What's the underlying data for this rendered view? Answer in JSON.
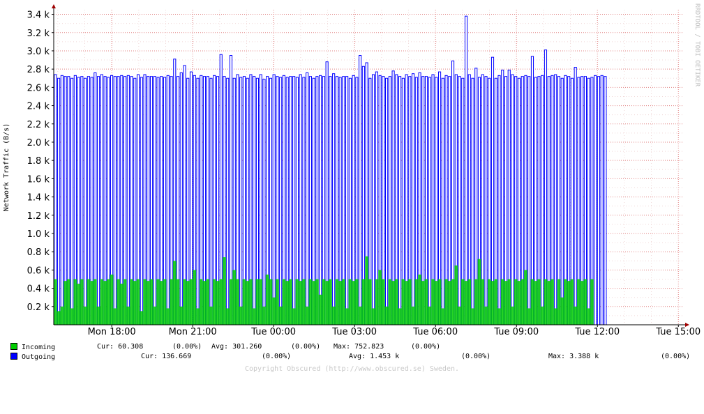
{
  "chart_data": {
    "type": "area",
    "ylabel": "Network Traffic (B/s)",
    "y_ticks": [
      "0.2 k",
      "0.4 k",
      "0.6 k",
      "0.8 k",
      "1.0 k",
      "1.2 k",
      "1.4 k",
      "1.6 k",
      "1.8 k",
      "2.0 k",
      "2.2 k",
      "2.4 k",
      "2.6 k",
      "2.8 k",
      "3.0 k",
      "3.2 k",
      "3.4 k"
    ],
    "x_ticks": [
      "Mon 18:00",
      "Mon 21:00",
      "Tue 00:00",
      "Tue 03:00",
      "Tue 06:00",
      "Tue 09:00",
      "Tue 12:00",
      "Tue 15:00"
    ],
    "ylim": [
      0,
      3450
    ],
    "x_range_hours": [
      15.85,
      39.2
    ],
    "data_end_hour": 36.35,
    "grid": true,
    "legend_placement": "bottom-left",
    "series": [
      {
        "name": "Incoming",
        "color": "#00cc00",
        "values": [
          500,
          150,
          200,
          480,
          500,
          180,
          500,
          450,
          500,
          200,
          500,
          480,
          500,
          200,
          500,
          480,
          500,
          550,
          180,
          500,
          450,
          500,
          200,
          500,
          480,
          500,
          150,
          500,
          480,
          500,
          200,
          500,
          480,
          500,
          180,
          500,
          700,
          500,
          200,
          500,
          480,
          500,
          600,
          180,
          500,
          480,
          500,
          200,
          500,
          480,
          500,
          740,
          180,
          500,
          600,
          500,
          200,
          500,
          480,
          500,
          180,
          500,
          500,
          200,
          550,
          500,
          300,
          500,
          200,
          500,
          480,
          500,
          180,
          500,
          480,
          500,
          200,
          500,
          480,
          500,
          330,
          500,
          480,
          500,
          200,
          500,
          480,
          500,
          180,
          500,
          480,
          500,
          200,
          500,
          750,
          500,
          180,
          500,
          600,
          500,
          200,
          500,
          480,
          500,
          180,
          500,
          480,
          500,
          200,
          500,
          550,
          480,
          500,
          200,
          500,
          480,
          500,
          180,
          500,
          480,
          500,
          650,
          200,
          500,
          480,
          500,
          180,
          500,
          720,
          500,
          200,
          500,
          480,
          500,
          180,
          500,
          480,
          500,
          200,
          500,
          480,
          500,
          600,
          180,
          500,
          480,
          500,
          200,
          500,
          480,
          500,
          180,
          500,
          300,
          500,
          480,
          500,
          200,
          500,
          480,
          500,
          180,
          500
        ]
      },
      {
        "name": "Outgoing",
        "color": "#0000ff",
        "values": [
          2740,
          2700,
          2730,
          2720,
          2720,
          2700,
          2730,
          2710,
          2720,
          2700,
          2720,
          2710,
          2760,
          2720,
          2740,
          2720,
          2710,
          2730,
          2720,
          2720,
          2730,
          2720,
          2730,
          2720,
          2700,
          2740,
          2710,
          2740,
          2720,
          2720,
          2720,
          2710,
          2720,
          2710,
          2730,
          2720,
          2910,
          2720,
          2760,
          2840,
          2700,
          2770,
          2730,
          2700,
          2730,
          2720,
          2720,
          2700,
          2730,
          2720,
          2960,
          2720,
          2700,
          2950,
          2700,
          2740,
          2710,
          2720,
          2700,
          2740,
          2720,
          2700,
          2740,
          2690,
          2720,
          2700,
          2740,
          2720,
          2710,
          2730,
          2710,
          2720,
          2720,
          2710,
          2740,
          2710,
          2760,
          2720,
          2700,
          2720,
          2730,
          2720,
          2880,
          2720,
          2750,
          2720,
          2710,
          2720,
          2720,
          2700,
          2730,
          2710,
          2950,
          2830,
          2870,
          2700,
          2740,
          2770,
          2730,
          2720,
          2700,
          2720,
          2780,
          2740,
          2720,
          2700,
          2740,
          2720,
          2750,
          2710,
          2760,
          2720,
          2720,
          2710,
          2740,
          2710,
          2770,
          2700,
          2730,
          2720,
          2890,
          2740,
          2720,
          2700,
          3380,
          2740,
          2700,
          2810,
          2710,
          2740,
          2720,
          2700,
          2930,
          2700,
          2730,
          2790,
          2720,
          2790,
          2740,
          2720,
          2700,
          2720,
          2730,
          2720,
          2940,
          2710,
          2720,
          2730,
          3010,
          2720,
          2730,
          2740,
          2720,
          2700,
          2730,
          2720,
          2700,
          2820,
          2710,
          2720,
          2720,
          2700,
          2710,
          2730,
          2720,
          2730,
          2720
        ]
      }
    ]
  },
  "legend": {
    "incoming": {
      "name": "Incoming",
      "color": "#00cc00",
      "cur": "Cur: 60.308",
      "cur_pct": "(0.00%)",
      "avg": "Avg: 301.260",
      "avg_pct": "(0.00%)",
      "max": "Max: 752.823",
      "max_pct": "(0.00%)"
    },
    "outgoing": {
      "name": "Outgoing",
      "color": "#0000ff",
      "cur": "Cur: 136.669",
      "cur_pct": "(0.00%)",
      "avg": "Avg: 1.453 k",
      "avg_pct": "(0.00%)",
      "max": "Max: 3.388 k",
      "max_pct": "(0.00%)"
    }
  },
  "watermark": "RRDTOOL / TOBI OETIKER",
  "footer": "Copyright Obscured (http://www.obscured.se) Sweden."
}
